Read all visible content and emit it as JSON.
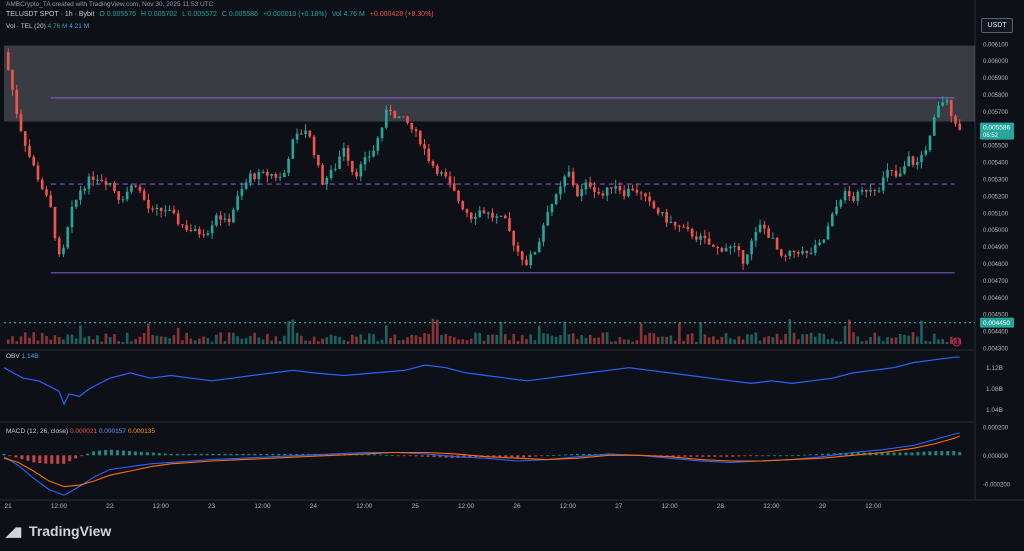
{
  "attribution": "AMBCrypto_TA created with TradingView.com, Nov 30, 2025 11:53 UTC",
  "currency_button": "USDT",
  "header": {
    "symbol": "TELUSDT SPOT · 1h · Bybit",
    "open": "O 0.005576",
    "high": "H 0.005702",
    "low": "L 0.005572",
    "close": "C 0.005586",
    "change": "+0.000010 (+0.18%)",
    "volume": "Vol 4.76 M",
    "vol_change": "+0.000428 (+8.30%)"
  },
  "vol_legend": {
    "name": "Vol · TEL (20)",
    "v1": "4.76 M",
    "v2": "4.21 M"
  },
  "obv_legend": {
    "name": "OBV",
    "value": "1.14B"
  },
  "macd_legend": {
    "name": "MACD (12, 26, close)",
    "hist": "0.000021",
    "macd": "0.000157",
    "signal": "0.000135"
  },
  "price_axis": {
    "ticks": [
      "0.006200",
      "0.006100",
      "0.006000",
      "0.005900",
      "0.005800",
      "0.005700",
      "0.005600",
      "0.005500",
      "0.005400",
      "0.005300",
      "0.005200",
      "0.005100",
      "0.005000",
      "0.004900",
      "0.004800",
      "0.004700",
      "0.004600",
      "0.004500",
      "0.004400",
      "0.004300"
    ],
    "last_price": "0.005586",
    "countdown": "06:52",
    "green_label": "0.004450"
  },
  "obv_axis": {
    "ticks": [
      "1.12B",
      "1.08B",
      "1.04B"
    ]
  },
  "macd_axis": {
    "ticks": [
      "0.000200",
      "0.000000",
      "-0.000200"
    ]
  },
  "time_axis": {
    "ticks": [
      "21",
      "12:00",
      "22",
      "12:00",
      "23",
      "12:00",
      "24",
      "12:00",
      "25",
      "12:00",
      "26",
      "12:00",
      "27",
      "12:00",
      "28",
      "12:00",
      "29",
      "12:00"
    ]
  },
  "logo_text": "TradingView",
  "colors": {
    "up": "#26a69a",
    "down": "#ef5350",
    "zone": "#5f6169",
    "level": "#7e57c2",
    "obv": "#2962ff",
    "macd": "#2962ff",
    "signal": "#ff6d00",
    "background": "#0e1017"
  },
  "chart_data": {
    "type": "candlestick",
    "xlabel": "",
    "ylabel": "",
    "x_range": [
      20.96,
      30.5
    ],
    "ylim": [
      0.0043,
      0.0063
    ],
    "supply_zone": [
      0.00564,
      0.00609
    ],
    "levels": [
      {
        "price": 0.00578,
        "style": "solid",
        "color": "#7e57c2"
      },
      {
        "price": 0.00527,
        "style": "dashed",
        "color": "#7e57c2"
      },
      {
        "price": 0.004745,
        "style": "solid",
        "color": "#7e57c2"
      },
      {
        "price": 0.00445,
        "style": "dotted",
        "color": "#26a69a"
      }
    ],
    "price_path": {
      "x": [
        20.96,
        21.02,
        21.1,
        21.2,
        21.3,
        21.42,
        21.48,
        21.52,
        21.55,
        21.62,
        21.72,
        21.85,
        22.0,
        22.1,
        22.25,
        22.4,
        22.55,
        22.7,
        22.85,
        22.97,
        23.05,
        23.15,
        23.25,
        23.38,
        23.48,
        23.58,
        23.7,
        23.78,
        23.85,
        23.93,
        24.0,
        24.08,
        24.2,
        24.3,
        24.4,
        24.5,
        24.6,
        24.68,
        24.74,
        24.8,
        24.92,
        25.05,
        25.15,
        25.3,
        25.45,
        25.55,
        25.65,
        25.75,
        25.88,
        25.95,
        26.0,
        26.1,
        26.15,
        26.2,
        26.3,
        26.4,
        26.5,
        26.6,
        26.7,
        26.8,
        26.85,
        26.95,
        27.05,
        27.15,
        27.3,
        27.45,
        27.55,
        27.7,
        27.85,
        27.95,
        28.05,
        28.15,
        28.22,
        28.3,
        28.4,
        28.5,
        28.6,
        28.75,
        28.85,
        29.0,
        29.1,
        29.2,
        29.3,
        29.45,
        29.55,
        29.65,
        29.75,
        29.85,
        29.92,
        30.0,
        30.05,
        30.12,
        30.2,
        30.28,
        30.35
      ],
      "close": [
        0.00605,
        0.0059,
        0.00565,
        0.00545,
        0.0053,
        0.00512,
        0.0049,
        0.00478,
        0.0049,
        0.0051,
        0.00525,
        0.00532,
        0.00528,
        0.00518,
        0.00528,
        0.0051,
        0.00512,
        0.00503,
        0.00498,
        0.005,
        0.0051,
        0.00503,
        0.00518,
        0.00532,
        0.00532,
        0.00533,
        0.0053,
        0.0055,
        0.00556,
        0.0056,
        0.00548,
        0.00528,
        0.00535,
        0.0055,
        0.00532,
        0.0054,
        0.00548,
        0.00562,
        0.00573,
        0.00568,
        0.00563,
        0.00553,
        0.0054,
        0.0053,
        0.00515,
        0.00508,
        0.00512,
        0.00508,
        0.00505,
        0.00495,
        0.00488,
        0.0048,
        0.00485,
        0.0049,
        0.00512,
        0.0052,
        0.00535,
        0.0052,
        0.00528,
        0.00522,
        0.0052,
        0.00528,
        0.00522,
        0.00525,
        0.00515,
        0.00507,
        0.00502,
        0.00498,
        0.00493,
        0.00488,
        0.0049,
        0.00488,
        0.00482,
        0.00492,
        0.00503,
        0.00495,
        0.00482,
        0.00488,
        0.00485,
        0.00492,
        0.00508,
        0.00522,
        0.00518,
        0.00525,
        0.00525,
        0.00535,
        0.0053,
        0.00542,
        0.00538,
        0.00547,
        0.00552,
        0.0057,
        0.00578,
        0.00568,
        0.005586
      ]
    },
    "volume_million": {
      "last": 4.76,
      "ma20": 4.21
    },
    "obv_path": {
      "x": [
        20.96,
        21.05,
        21.15,
        21.3,
        21.4,
        21.5,
        21.55,
        21.6,
        21.7,
        21.8,
        22.0,
        22.2,
        22.4,
        22.6,
        22.8,
        23.0,
        23.2,
        23.4,
        23.6,
        23.8,
        24.0,
        24.3,
        24.6,
        24.9,
        25.1,
        25.3,
        25.5,
        25.7,
        25.9,
        26.1,
        26.3,
        26.5,
        26.7,
        26.9,
        27.1,
        27.3,
        27.5,
        27.7,
        27.9,
        28.1,
        28.3,
        28.5,
        28.7,
        28.9,
        29.1,
        29.3,
        29.5,
        29.7,
        29.9,
        30.1,
        30.3,
        30.35
      ],
      "value_billion": [
        1.12,
        1.11,
        1.1,
        1.095,
        1.085,
        1.075,
        1.05,
        1.07,
        1.065,
        1.08,
        1.1,
        1.11,
        1.1,
        1.105,
        1.1,
        1.095,
        1.1,
        1.105,
        1.11,
        1.115,
        1.11,
        1.105,
        1.11,
        1.115,
        1.125,
        1.12,
        1.11,
        1.105,
        1.1,
        1.095,
        1.1,
        1.105,
        1.11,
        1.115,
        1.12,
        1.115,
        1.11,
        1.105,
        1.1,
        1.095,
        1.09,
        1.095,
        1.09,
        1.095,
        1.1,
        1.11,
        1.115,
        1.12,
        1.13,
        1.135,
        1.14,
        1.14
      ]
    },
    "macd_path": {
      "x": [
        20.96,
        21.1,
        21.25,
        21.4,
        21.55,
        21.7,
        21.85,
        22.0,
        22.2,
        22.4,
        22.6,
        22.8,
        23.0,
        23.3,
        23.6,
        23.9,
        24.2,
        24.5,
        24.8,
        25.1,
        25.4,
        25.7,
        26.0,
        26.3,
        26.6,
        26.9,
        27.2,
        27.5,
        27.8,
        28.1,
        28.4,
        28.7,
        29.0,
        29.3,
        29.6,
        29.9,
        30.1,
        30.3,
        30.35
      ],
      "macd": [
        -1e-05,
        -7e-05,
        -0.00016,
        -0.00024,
        -0.00028,
        -0.00022,
        -0.00015,
        -0.0001,
        -8e-05,
        -6e-05,
        -5e-05,
        -4e-05,
        -3e-05,
        -2e-05,
        -1e-05,
        0.0,
        1e-05,
        2e-05,
        2e-05,
        1e-05,
        -1e-05,
        -2e-05,
        -4e-05,
        -3e-05,
        -1e-05,
        1e-05,
        0.0,
        -2e-05,
        -4e-05,
        -5e-05,
        -4e-05,
        -3e-05,
        -1e-05,
        2e-05,
        4e-05,
        7e-05,
        0.00011,
        0.00015,
        0.000157
      ],
      "signal": [
        -2e-05,
        -5e-05,
        -0.00011,
        -0.00018,
        -0.00022,
        -0.00021,
        -0.00018,
        -0.00014,
        -0.00011,
        -8e-05,
        -6e-05,
        -5e-05,
        -4e-05,
        -3e-05,
        -2e-05,
        -1e-05,
        0.0,
        1e-05,
        2e-05,
        2e-05,
        1e-05,
        -1e-05,
        -2e-05,
        -3e-05,
        -2e-05,
        0.0,
        0.0,
        -1e-05,
        -3e-05,
        -4e-05,
        -4e-05,
        -3e-05,
        -2e-05,
        0.0,
        2e-05,
        5e-05,
        8e-05,
        0.00012,
        0.000135
      ]
    }
  }
}
